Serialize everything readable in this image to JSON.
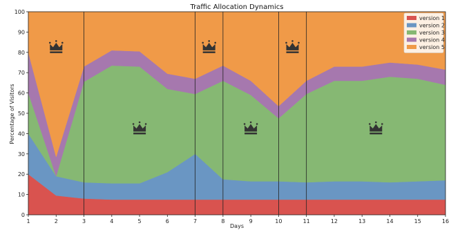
{
  "chart_data": {
    "type": "area",
    "stacked": true,
    "title": "Traffic Allocation Dynamics",
    "xlabel": "Days",
    "ylabel": "Percentage of Visitors",
    "xlim": [
      1,
      16
    ],
    "ylim": [
      0,
      100
    ],
    "x": [
      1,
      2,
      3,
      4,
      5,
      6,
      7,
      8,
      9,
      10,
      11,
      12,
      13,
      14,
      15,
      16
    ],
    "x_ticks": [
      1,
      2,
      3,
      4,
      5,
      6,
      7,
      8,
      9,
      10,
      11,
      12,
      13,
      14,
      15,
      16
    ],
    "y_ticks": [
      0,
      10,
      20,
      30,
      40,
      50,
      60,
      70,
      80,
      90,
      100
    ],
    "series": [
      {
        "name": "version 1",
        "color": "#d9534f",
        "values": [
          20,
          9.5,
          8,
          7.5,
          7.5,
          7.5,
          7.5,
          7.5,
          7.5,
          7.5,
          7.5,
          7.5,
          7.5,
          7.5,
          7.5,
          7.5
        ]
      },
      {
        "name": "version 2",
        "color": "#6a96c3",
        "values": [
          20,
          9.5,
          8,
          8,
          8,
          13.5,
          22.5,
          10,
          9,
          9,
          8.5,
          9,
          9,
          8.5,
          9,
          9.5
        ]
      },
      {
        "name": "version 3",
        "color": "#86b873",
        "values": [
          20,
          0,
          49.5,
          58,
          57.5,
          41,
          29.5,
          48.5,
          42.5,
          31,
          43.5,
          49.5,
          49.5,
          52,
          50.5,
          47
        ]
      },
      {
        "name": "version 4",
        "color": "#a678ae",
        "values": [
          20,
          9.5,
          7.5,
          7.5,
          7.5,
          7.5,
          7.5,
          7.5,
          7,
          6,
          6.5,
          7,
          7,
          7,
          7,
          7.5
        ]
      },
      {
        "name": "version 5",
        "color": "#f09a48",
        "values": [
          20,
          71.5,
          27,
          19,
          19.5,
          30.5,
          33,
          26.5,
          34,
          46.5,
          34,
          27,
          27,
          25,
          26,
          28.5
        ]
      }
    ],
    "vertical_lines": [
      3,
      7,
      8,
      10,
      11
    ],
    "crown_markers": [
      {
        "x": 2,
        "y": 82
      },
      {
        "x": 5,
        "y": 42
      },
      {
        "x": 7.5,
        "y": 82
      },
      {
        "x": 9,
        "y": 42
      },
      {
        "x": 10.5,
        "y": 82
      },
      {
        "x": 13.5,
        "y": 42
      }
    ],
    "grid": false,
    "legend_position": "top-right"
  }
}
